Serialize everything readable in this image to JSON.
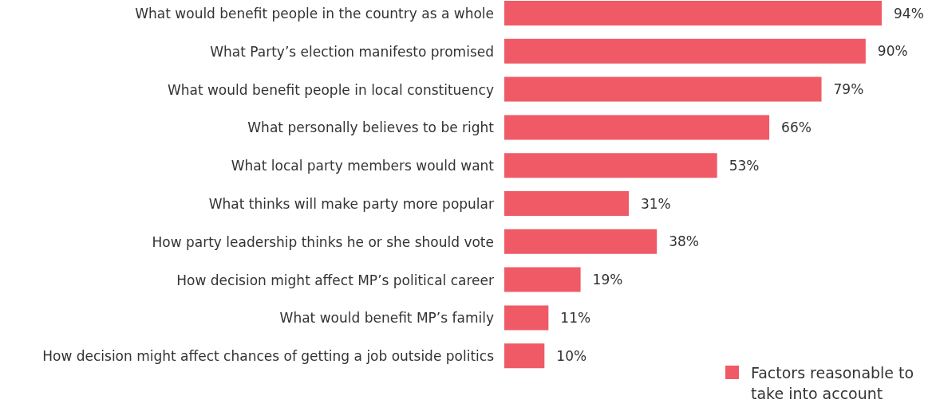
{
  "chart_data": {
    "type": "bar",
    "orientation": "horizontal",
    "categories": [
      "What would benefit people in the country as a whole",
      "What Party’s election manifesto promised",
      "What would benefit people in local constituency",
      "What personally believes to be right",
      "What local party members would want",
      "What thinks will make party more popular",
      "How party leadership thinks he or she should vote",
      "How decision might affect MP’s political career",
      "What would benefit MP’s family",
      "How decision might affect chances of getting a job outside politics"
    ],
    "series": [
      {
        "name": "Factors reasonable to take into account",
        "color": "#f05a67",
        "values": [
          94,
          90,
          79,
          66,
          53,
          31,
          38,
          19,
          11,
          10
        ],
        "value_labels": [
          "94%",
          "90%",
          "79%",
          "66%",
          "53%",
          "31%",
          "38%",
          "19%",
          "11%",
          "10%"
        ]
      }
    ],
    "legend": "bottom right"
  }
}
